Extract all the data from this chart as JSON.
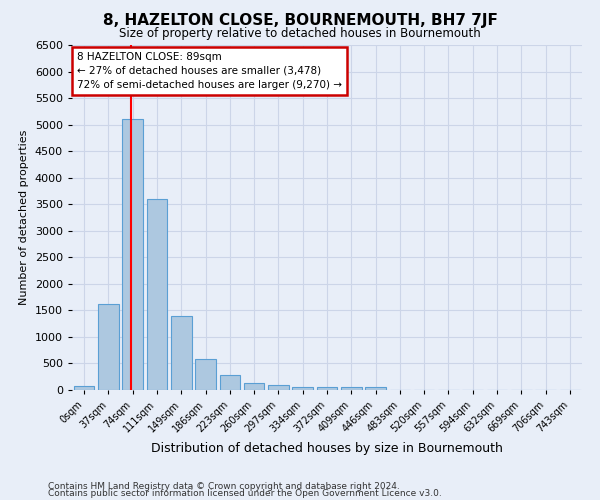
{
  "title": "8, HAZELTON CLOSE, BOURNEMOUTH, BH7 7JF",
  "subtitle": "Size of property relative to detached houses in Bournemouth",
  "xlabel": "Distribution of detached houses by size in Bournemouth",
  "ylabel": "Number of detached properties",
  "bar_labels": [
    "0sqm",
    "37sqm",
    "74sqm",
    "111sqm",
    "149sqm",
    "186sqm",
    "223sqm",
    "260sqm",
    "297sqm",
    "334sqm",
    "372sqm",
    "409sqm",
    "446sqm",
    "483sqm",
    "520sqm",
    "557sqm",
    "594sqm",
    "632sqm",
    "669sqm",
    "706sqm",
    "743sqm"
  ],
  "bar_values": [
    75,
    1625,
    5100,
    3600,
    1400,
    575,
    290,
    140,
    85,
    60,
    55,
    55,
    55,
    0,
    0,
    0,
    0,
    0,
    0,
    0,
    0
  ],
  "bar_color": "#adc8e0",
  "bar_edge_color": "#5a9fd4",
  "annotation_line1": "8 HAZELTON CLOSE: 89sqm",
  "annotation_line2": "← 27% of detached houses are smaller (3,478)",
  "annotation_line3": "72% of semi-detached houses are larger (9,270) →",
  "annotation_box_color": "#ffffff",
  "annotation_box_edge_color": "#cc0000",
  "grid_color": "#ccd5e8",
  "background_color": "#e8eef8",
  "ylim": [
    0,
    6500
  ],
  "yticks": [
    0,
    500,
    1000,
    1500,
    2000,
    2500,
    3000,
    3500,
    4000,
    4500,
    5000,
    5500,
    6000,
    6500
  ],
  "footer_line1": "Contains HM Land Registry data © Crown copyright and database right 2024.",
  "footer_line2": "Contains public sector information licensed under the Open Government Licence v3.0."
}
